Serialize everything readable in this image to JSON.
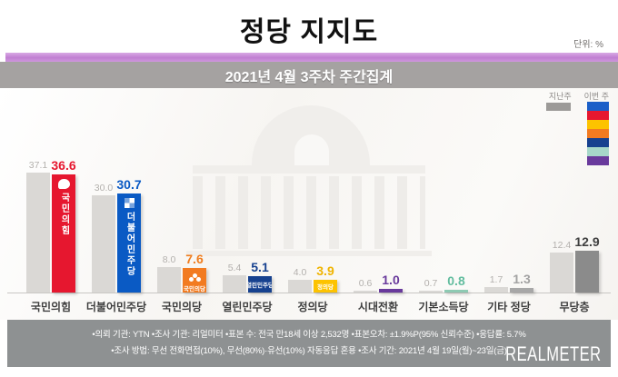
{
  "header": {
    "title": "정당 지지도",
    "unit": "단위: %"
  },
  "subtitle": "2021년 4월 3주차 주간집계",
  "legend": {
    "last_week": "지난주",
    "this_week": "이번 주",
    "last_week_color": "#9c9a98",
    "stack_colors": [
      "#1b5fc8",
      "#e6172f",
      "#fdc300",
      "#f27b21",
      "#16418f",
      "#a6d7c9",
      "#693a9c"
    ]
  },
  "chart_data": {
    "type": "bar",
    "title": "정당 지지도",
    "subtitle": "2021년 4월 3주차 주간집계",
    "unit": "%",
    "categories": [
      "국민의힘",
      "더불어민주당",
      "국민의당",
      "열린민주당",
      "정의당",
      "시대전환",
      "기본소득당",
      "기타 정당",
      "무당층"
    ],
    "series": [
      {
        "name": "지난주",
        "values": [
          37.1,
          30.0,
          8.0,
          5.4,
          4.0,
          0.6,
          0.7,
          1.7,
          12.4
        ]
      },
      {
        "name": "이번 주",
        "values": [
          36.6,
          30.7,
          7.6,
          5.1,
          3.9,
          1.0,
          0.8,
          1.3,
          12.9
        ]
      }
    ],
    "ylim": [
      0,
      40
    ],
    "grid": false,
    "legend_position": "top-right"
  },
  "parties": [
    {
      "name": "국민의힘",
      "prev": 37.1,
      "curr": 36.6,
      "bar_color": "#e6172f",
      "value_color": "#e6172f",
      "bar_label": "국민의힘",
      "label_style": "vertical",
      "logo": "ppp"
    },
    {
      "name": "더불어민주당",
      "prev": 30.0,
      "curr": 30.7,
      "bar_color": "#0a5ac4",
      "value_color": "#0a5ac4",
      "bar_label": "더불어민주당",
      "label_style": "vertical",
      "logo": "dpk"
    },
    {
      "name": "국민의당",
      "prev": 8.0,
      "curr": 7.6,
      "bar_color": "#f27b21",
      "value_color": "#f07d1e",
      "bar_label": "국민의당",
      "label_style": "tiny",
      "logo": "clover"
    },
    {
      "name": "열린민주당",
      "prev": 5.4,
      "curr": 5.1,
      "bar_color": "#16418f",
      "value_color": "#16418f",
      "bar_label": "열린민주당",
      "label_style": "tiny"
    },
    {
      "name": "정의당",
      "prev": 4.0,
      "curr": 3.9,
      "bar_color": "#fdc300",
      "value_color": "#f0b400",
      "bar_label": "정의당",
      "label_style": "tiny"
    },
    {
      "name": "시대전환",
      "prev": 0.6,
      "curr": 1.0,
      "bar_color": "#693a9c",
      "value_color": "#693a9c"
    },
    {
      "name": "기본소득당",
      "prev": 0.7,
      "curr": 0.8,
      "bar_color": "#8ecab3",
      "value_color": "#62bd9f"
    },
    {
      "name": "기타 정당",
      "prev": 1.7,
      "curr": 1.3,
      "bar_color": "#a7a7a7",
      "value_color": "#a2a2a2"
    },
    {
      "name": "무당층",
      "prev": 12.4,
      "curr": 12.9,
      "bar_color": "#8b8b8b",
      "value_color": "#3f3f3f"
    }
  ],
  "footer": {
    "line1": "•의뢰 기관: YTN •조사 기관: 리얼미터 •표본 수: 전국 만18세 이상 2,532명 •표본오차: ±1.9%P(95% 신뢰수준) •응답률: 5.7%",
    "line2": "•조사 방법: 무선 전화면접(10%), 무선(80%)·유선(10%) 자동응답 혼용 •조사 기간: 2021년 4월 19일(월)~23일(금)",
    "brand": "REALMETER"
  }
}
